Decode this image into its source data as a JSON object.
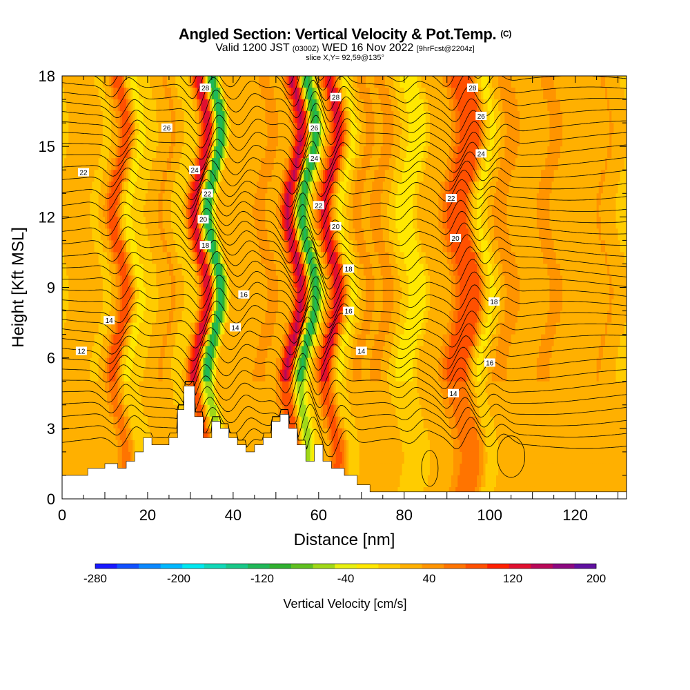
{
  "header": {
    "title": "Angled Section: Vertical Velocity & Pot.Temp.",
    "title_units": "(C)",
    "valid_prefix": "Valid 1200 JST",
    "valid_utc": "(0300Z)",
    "valid_date": "WED 16 Nov 2022",
    "forecast": "[9hrFcst@2204z]",
    "slice": "slice X,Y= 92,59@135°"
  },
  "colorbar": {
    "label": "Vertical Velocity [cm/s]",
    "tick_labels": [
      "-280",
      "-200",
      "-120",
      "-40",
      "40",
      "120",
      "200"
    ],
    "tick_values": [
      -280,
      -200,
      -120,
      -40,
      40,
      120,
      200
    ],
    "range": [
      -280,
      200
    ],
    "colors": [
      "#1818ff",
      "#1050ff",
      "#0a88ff",
      "#00b8ff",
      "#00e8f0",
      "#10d8b8",
      "#18c888",
      "#20b858",
      "#30b030",
      "#60c020",
      "#a0d818",
      "#e8f010",
      "#ffe800",
      "#ffcc00",
      "#ffb000",
      "#ff9400",
      "#ff7400",
      "#ff5000",
      "#ff2000",
      "#e01030",
      "#b80858",
      "#8c0880",
      "#6010a0"
    ]
  },
  "chart_data": {
    "type": "heatmap",
    "xlabel": "Distance [nm]",
    "ylabel": "Height [Kft MSL]",
    "xlim": [
      0,
      132
    ],
    "ylim": [
      0,
      18
    ],
    "xticks": [
      0,
      20,
      40,
      60,
      80,
      100,
      120
    ],
    "yticks": [
      0,
      3,
      6,
      9,
      12,
      15,
      18
    ],
    "grid": false,
    "field": "Vertical Velocity [cm/s]",
    "contour_field": "Pot.Temp. (C)",
    "contour_levels": [
      12,
      14,
      16,
      18,
      20,
      22,
      24,
      26,
      28
    ],
    "velocity_bands": [
      {
        "x": 4,
        "w": 3,
        "amp": 25
      },
      {
        "x": 13.5,
        "w": 2.0,
        "amp": 85
      },
      {
        "x": 16.5,
        "w": 1.8,
        "amp": -30
      },
      {
        "x": 25,
        "w": 3,
        "amp": 30
      },
      {
        "x": 28,
        "w": 2.5,
        "amp": -20
      },
      {
        "x": 32.5,
        "w": 1.8,
        "amp": 130
      },
      {
        "x": 35.5,
        "w": 1.7,
        "amp": -150
      },
      {
        "x": 38,
        "w": 2,
        "amp": 30
      },
      {
        "x": 43,
        "w": 3,
        "amp": 20
      },
      {
        "x": 48,
        "w": 2.5,
        "amp": 30
      },
      {
        "x": 54.5,
        "w": 2.0,
        "amp": 135
      },
      {
        "x": 57.5,
        "w": 1.6,
        "amp": -140
      },
      {
        "x": 63,
        "w": 1.9,
        "amp": 125
      },
      {
        "x": 66.5,
        "w": 2,
        "amp": -30
      },
      {
        "x": 70,
        "w": 2.5,
        "amp": 30
      },
      {
        "x": 75,
        "w": 2.5,
        "amp": 30
      },
      {
        "x": 82,
        "w": 3,
        "amp": -35
      },
      {
        "x": 86,
        "w": 3,
        "amp": 25
      },
      {
        "x": 92,
        "w": 2.2,
        "amp": 65
      },
      {
        "x": 95.5,
        "w": 2.2,
        "amp": 85
      },
      {
        "x": 98.5,
        "w": 2.5,
        "amp": -35
      },
      {
        "x": 103,
        "w": 3,
        "amp": 30
      },
      {
        "x": 108,
        "w": 3,
        "amp": 20
      },
      {
        "x": 114,
        "w": 3,
        "amp": 30
      },
      {
        "x": 121,
        "w": 3,
        "amp": 20
      },
      {
        "x": 127,
        "w": 3,
        "amp": 25
      }
    ],
    "terrain": [
      {
        "x": 0,
        "h": 1.0
      },
      {
        "x": 4,
        "h": 1.0
      },
      {
        "x": 6,
        "h": 1.3
      },
      {
        "x": 10,
        "h": 1.5
      },
      {
        "x": 13,
        "h": 1.3
      },
      {
        "x": 15,
        "h": 1.6
      },
      {
        "x": 17,
        "h": 2.0
      },
      {
        "x": 19,
        "h": 2.6
      },
      {
        "x": 21,
        "h": 2.3
      },
      {
        "x": 23,
        "h": 2.3
      },
      {
        "x": 25,
        "h": 2.6
      },
      {
        "x": 27,
        "h": 3.8
      },
      {
        "x": 28.5,
        "h": 4.8
      },
      {
        "x": 31,
        "h": 3.5
      },
      {
        "x": 33,
        "h": 2.6
      },
      {
        "x": 35,
        "h": 3.3
      },
      {
        "x": 37,
        "h": 3.0
      },
      {
        "x": 39,
        "h": 2.6
      },
      {
        "x": 41,
        "h": 2.3
      },
      {
        "x": 43,
        "h": 2.0
      },
      {
        "x": 45,
        "h": 2.3
      },
      {
        "x": 47,
        "h": 2.6
      },
      {
        "x": 49,
        "h": 3.3
      },
      {
        "x": 51,
        "h": 3.6
      },
      {
        "x": 53,
        "h": 3.0
      },
      {
        "x": 55,
        "h": 2.3
      },
      {
        "x": 57,
        "h": 1.6
      },
      {
        "x": 59,
        "h": 2.3
      },
      {
        "x": 61,
        "h": 1.6
      },
      {
        "x": 63,
        "h": 1.3
      },
      {
        "x": 66,
        "h": 1.0
      },
      {
        "x": 69,
        "h": 0.6
      },
      {
        "x": 72,
        "h": 0.3
      },
      {
        "x": 132,
        "h": 0.3
      }
    ],
    "contour_labels": [
      {
        "text": "28",
        "x": 33.5,
        "y": 17.5
      },
      {
        "text": "28",
        "x": 64,
        "y": 17.1
      },
      {
        "text": "28",
        "x": 96,
        "y": 17.5
      },
      {
        "text": "26",
        "x": 24.5,
        "y": 15.8
      },
      {
        "text": "26",
        "x": 59,
        "y": 15.8
      },
      {
        "text": "26",
        "x": 98,
        "y": 16.3
      },
      {
        "text": "24",
        "x": 31,
        "y": 14.0
      },
      {
        "text": "24",
        "x": 59,
        "y": 14.5
      },
      {
        "text": "24",
        "x": 98,
        "y": 14.7
      },
      {
        "text": "22",
        "x": 5,
        "y": 13.9
      },
      {
        "text": "22",
        "x": 34,
        "y": 13.0
      },
      {
        "text": "22",
        "x": 60,
        "y": 12.5
      },
      {
        "text": "22",
        "x": 91,
        "y": 12.8
      },
      {
        "text": "20",
        "x": 33,
        "y": 11.9
      },
      {
        "text": "20",
        "x": 64,
        "y": 11.6
      },
      {
        "text": "20",
        "x": 92,
        "y": 11.1
      },
      {
        "text": "18",
        "x": 33.5,
        "y": 10.8
      },
      {
        "text": "18",
        "x": 67,
        "y": 9.8
      },
      {
        "text": "18",
        "x": 101,
        "y": 8.4
      },
      {
        "text": "16",
        "x": 42.5,
        "y": 8.7
      },
      {
        "text": "16",
        "x": 67,
        "y": 8.0
      },
      {
        "text": "16",
        "x": 100,
        "y": 5.8
      },
      {
        "text": "14",
        "x": 11,
        "y": 7.6
      },
      {
        "text": "14",
        "x": 40.5,
        "y": 7.3
      },
      {
        "text": "14",
        "x": 70,
        "y": 6.3
      },
      {
        "text": "14",
        "x": 91.5,
        "y": 4.5
      },
      {
        "text": "12",
        "x": 4.5,
        "y": 6.3
      }
    ]
  }
}
